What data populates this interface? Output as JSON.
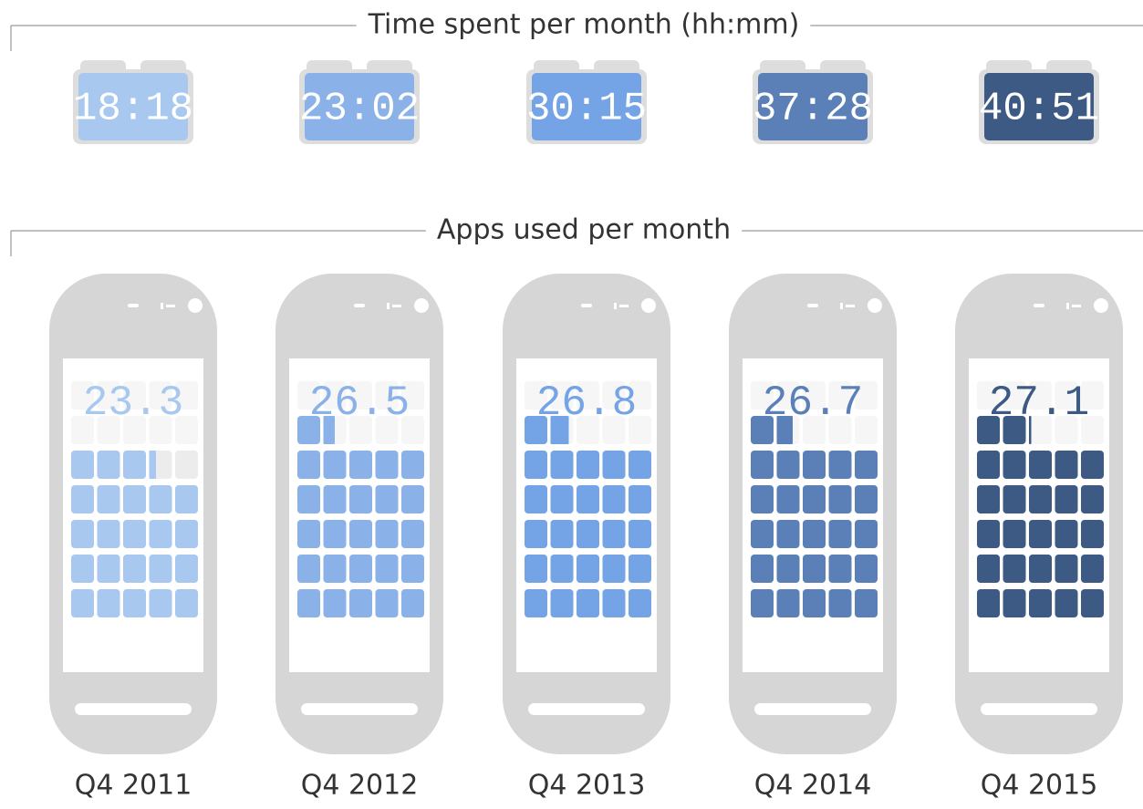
{
  "chart_data": [
    {
      "type": "clock",
      "title": "Time spent per month (hh:mm)",
      "categories": [
        "Q4 2011",
        "Q4 2012",
        "Q4 2013",
        "Q4 2014",
        "Q4 2015"
      ],
      "labels": [
        "18:18",
        "23:02",
        "30:15",
        "37:28",
        "40:51"
      ],
      "colors": [
        "#a9c8ef",
        "#8ab2e8",
        "#74a4e6",
        "#5b80b8",
        "#3d5a85"
      ]
    },
    {
      "type": "pictograph",
      "title": "Apps used per month",
      "categories": [
        "Q4 2011",
        "Q4 2012",
        "Q4 2013",
        "Q4 2014",
        "Q4 2015"
      ],
      "values": [
        23.3,
        26.5,
        26.8,
        26.7,
        27.1
      ],
      "colors": [
        "#a9c8ef",
        "#8ab2e8",
        "#74a4e6",
        "#5b80b8",
        "#3d5a85"
      ]
    }
  ]
}
